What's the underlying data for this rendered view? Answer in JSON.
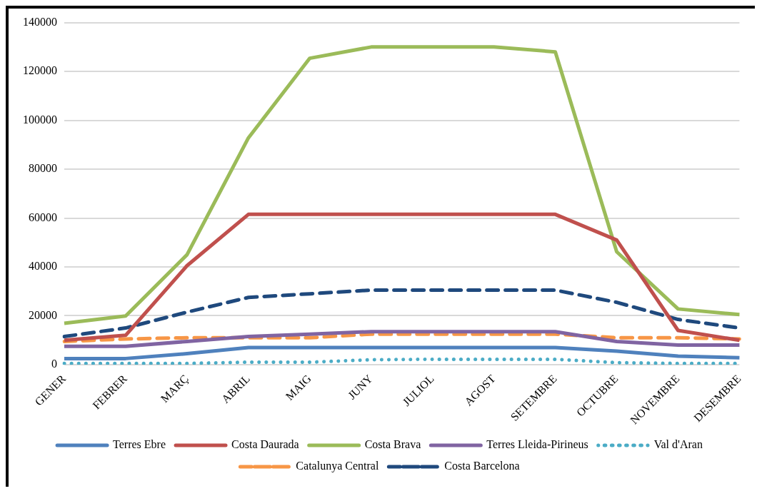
{
  "chart_data": {
    "type": "line",
    "categories": [
      "GENER",
      "FEBRER",
      "MARÇ",
      "ABRIL",
      "MAIG",
      "JUNY",
      "JULIOL",
      "AGOST",
      "SETEMBRE",
      "OCTUBRE",
      "NOVEMBRE",
      "DESEMBRE"
    ],
    "ylim": [
      0,
      140000
    ],
    "yticks": [
      0,
      20000,
      40000,
      60000,
      80000,
      100000,
      120000,
      140000
    ],
    "grid": "y",
    "legend": "bottom",
    "marker": "none",
    "series": [
      {
        "name": "Terres Ebre",
        "color": "#4f81bd",
        "line_style": "solid",
        "values": [
          2500,
          2500,
          4500,
          7000,
          7000,
          7000,
          7000,
          7000,
          7000,
          5500,
          3500,
          2800
        ]
      },
      {
        "name": "Costa Daurada",
        "color": "#c0504d",
        "line_style": "solid",
        "values": [
          10000,
          12000,
          40500,
          61500,
          61500,
          61500,
          61500,
          61500,
          61500,
          51000,
          14000,
          10000
        ]
      },
      {
        "name": "Costa Brava",
        "color": "#9bbb59",
        "line_style": "solid",
        "values": [
          16900,
          19900,
          45000,
          92800,
          125400,
          130000,
          130000,
          130000,
          128000,
          46200,
          22800,
          20500
        ]
      },
      {
        "name": "Terres Lleida-Pirineus",
        "color": "#8064a2",
        "line_style": "solid",
        "values": [
          7500,
          7500,
          9500,
          11500,
          12500,
          13500,
          13500,
          13500,
          13500,
          9500,
          8000,
          8000
        ]
      },
      {
        "name": "Val d'Aran",
        "color": "#4bacc6",
        "line_style": "dotted",
        "values": [
          500,
          500,
          500,
          1000,
          1000,
          2000,
          2200,
          2200,
          2200,
          800,
          500,
          500
        ]
      },
      {
        "name": "Catalunya Central",
        "color": "#f79646",
        "line_style": "dashed",
        "values": [
          9500,
          10500,
          11000,
          11000,
          11000,
          12500,
          12500,
          12500,
          12500,
          11000,
          11000,
          10500
        ]
      },
      {
        "name": "Costa Barcelona",
        "color": "#1f497d",
        "line_style": "dashed",
        "values": [
          11500,
          15000,
          21500,
          27500,
          29000,
          30500,
          30500,
          30500,
          30500,
          25500,
          18500,
          15000
        ]
      }
    ]
  }
}
